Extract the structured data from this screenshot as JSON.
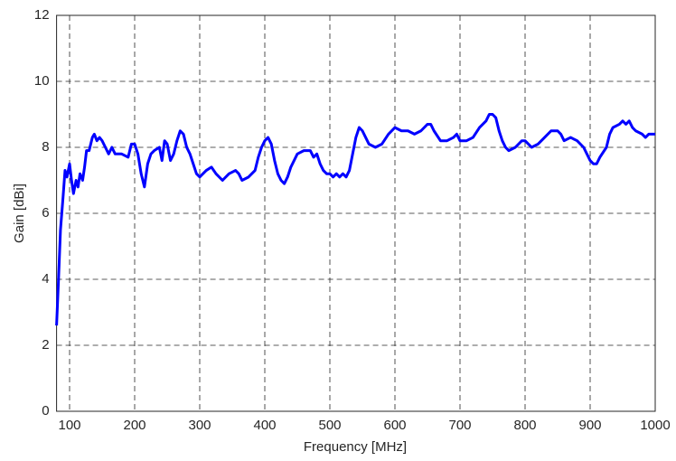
{
  "chart_data": {
    "type": "line",
    "xlabel": "Frequency [MHz]",
    "ylabel": "Gain [dBi]",
    "xlim": [
      80,
      1000
    ],
    "ylim": [
      0,
      12
    ],
    "xticks": [
      100,
      200,
      300,
      400,
      500,
      600,
      700,
      800,
      900,
      1000
    ],
    "yticks": [
      0,
      2,
      4,
      6,
      8,
      10,
      12
    ],
    "grid": true,
    "x": [
      80,
      83,
      86,
      90,
      93,
      96,
      100,
      103,
      106,
      110,
      113,
      116,
      120,
      123,
      126,
      130,
      135,
      138,
      142,
      146,
      150,
      155,
      160,
      165,
      170,
      180,
      190,
      195,
      200,
      205,
      210,
      215,
      220,
      225,
      230,
      238,
      242,
      246,
      250,
      255,
      260,
      265,
      270,
      275,
      280,
      285,
      290,
      295,
      300,
      310,
      318,
      325,
      335,
      345,
      355,
      360,
      365,
      375,
      385,
      390,
      395,
      400,
      405,
      410,
      415,
      420,
      425,
      430,
      435,
      440,
      450,
      460,
      470,
      475,
      480,
      485,
      490,
      495,
      500,
      505,
      510,
      515,
      520,
      525,
      530,
      535,
      540,
      545,
      550,
      555,
      560,
      570,
      580,
      590,
      600,
      610,
      620,
      630,
      640,
      650,
      655,
      660,
      670,
      680,
      690,
      695,
      700,
      710,
      720,
      730,
      740,
      745,
      750,
      755,
      760,
      765,
      770,
      775,
      785,
      795,
      800,
      805,
      810,
      820,
      830,
      840,
      850,
      855,
      860,
      870,
      880,
      890,
      895,
      900,
      905,
      910,
      915,
      925,
      930,
      935,
      945,
      950,
      955,
      960,
      965,
      970,
      980,
      985,
      990,
      1000
    ],
    "series": [
      {
        "color": "#0000ff",
        "values": [
          2.6,
          4.0,
          5.5,
          6.5,
          7.3,
          7.1,
          7.5,
          7.0,
          6.6,
          7.0,
          6.8,
          7.2,
          7.0,
          7.4,
          7.9,
          7.9,
          8.3,
          8.4,
          8.2,
          8.3,
          8.2,
          8.0,
          7.8,
          8.0,
          7.8,
          7.8,
          7.7,
          8.1,
          8.1,
          7.8,
          7.2,
          6.8,
          7.5,
          7.8,
          7.9,
          8.0,
          7.6,
          8.2,
          8.1,
          7.6,
          7.8,
          8.2,
          8.5,
          8.4,
          8.0,
          7.8,
          7.5,
          7.2,
          7.1,
          7.3,
          7.4,
          7.2,
          7.0,
          7.2,
          7.3,
          7.2,
          7.0,
          7.1,
          7.3,
          7.7,
          8.0,
          8.2,
          8.3,
          8.1,
          7.6,
          7.2,
          7.0,
          6.9,
          7.1,
          7.4,
          7.8,
          7.9,
          7.9,
          7.7,
          7.8,
          7.5,
          7.3,
          7.2,
          7.2,
          7.1,
          7.2,
          7.1,
          7.2,
          7.1,
          7.3,
          7.8,
          8.3,
          8.6,
          8.5,
          8.3,
          8.1,
          8.0,
          8.1,
          8.4,
          8.6,
          8.5,
          8.5,
          8.4,
          8.5,
          8.7,
          8.7,
          8.5,
          8.2,
          8.2,
          8.3,
          8.4,
          8.2,
          8.2,
          8.3,
          8.6,
          8.8,
          9.0,
          9.0,
          8.9,
          8.5,
          8.2,
          8.0,
          7.9,
          8.0,
          8.2,
          8.2,
          8.1,
          8.0,
          8.1,
          8.3,
          8.5,
          8.5,
          8.4,
          8.2,
          8.3,
          8.2,
          8.0,
          7.8,
          7.6,
          7.5,
          7.5,
          7.7,
          8.0,
          8.4,
          8.6,
          8.7,
          8.8,
          8.7,
          8.8,
          8.6,
          8.5,
          8.4,
          8.3,
          8.4,
          8.4
        ]
      }
    ]
  }
}
